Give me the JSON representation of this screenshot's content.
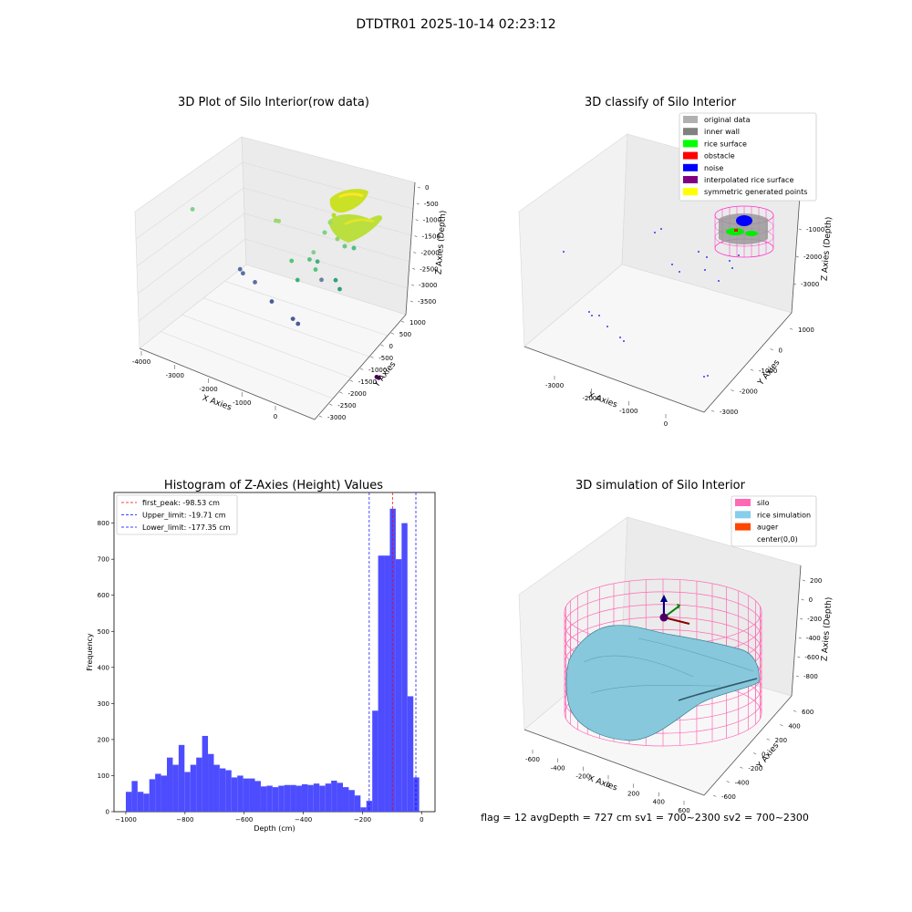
{
  "figure": {
    "suptitle": "DTDTR01 2025-10-14 02:23:12",
    "status_line": "flag = 12   avgDepth = 727 cm  sv1 = 700~2300  sv2 = 700~2300"
  },
  "chart_data": [
    {
      "type": "scatter",
      "title": "3D Plot of Silo Interior(row data)",
      "xlabel": "X Axies",
      "ylabel": "Y Axies",
      "zlabel": "Z Axies (Depth)",
      "x_ticks": [
        "-4000",
        "-3000",
        "-2000",
        "-1000",
        "0"
      ],
      "y_ticks": [
        "1000",
        "500",
        "0",
        "-500",
        "-1000",
        "-1500",
        "-2000",
        "-2500",
        "-3000"
      ],
      "z_ticks": [
        "0",
        "-500",
        "-1000",
        "-1500",
        "-2000",
        "-2500",
        "-3000",
        "-3500"
      ],
      "colormap": "viridis",
      "points": [
        {
          "x": -3400,
          "y": 600,
          "z": -2200,
          "c": "#7fd08a"
        },
        {
          "x": -2600,
          "y": -300,
          "z": -2800,
          "c": "#5a6fa3"
        },
        {
          "x": -2550,
          "y": -350,
          "z": -2850,
          "c": "#5a6fa3"
        },
        {
          "x": -2300,
          "y": -450,
          "z": -2900,
          "c": "#5a6fa3"
        },
        {
          "x": -2000,
          "y": -700,
          "z": -3100,
          "c": "#4b5c99"
        },
        {
          "x": -1600,
          "y": -950,
          "z": -3200,
          "c": "#4b5c99"
        },
        {
          "x": -1500,
          "y": -1000,
          "z": -3250,
          "c": "#4b5c99"
        },
        {
          "x": -1300,
          "y": 600,
          "z": -1500,
          "c": "#9bd96f"
        },
        {
          "x": -1250,
          "y": 550,
          "z": -1450,
          "c": "#9bd96f"
        },
        {
          "x": -1000,
          "y": 400,
          "z": -2300,
          "c": "#55c477"
        },
        {
          "x": -900,
          "y": 300,
          "z": -2700,
          "c": "#3fb07d"
        },
        {
          "x": -600,
          "y": 300,
          "z": -2000,
          "c": "#55c477"
        },
        {
          "x": -450,
          "y": 300,
          "z": -2200,
          "c": "#55c477"
        },
        {
          "x": -350,
          "y": 600,
          "z": -1900,
          "c": "#7fd08a"
        },
        {
          "x": -250,
          "y": 600,
          "z": -2100,
          "c": "#3fb07d"
        },
        {
          "x": -200,
          "y": 500,
          "z": -2500,
          "c": "#6f7fa0"
        },
        {
          "x": 0,
          "y": 200,
          "z": -2200,
          "c": "#2fa27a"
        },
        {
          "x": 0,
          "y": 0,
          "z": -2300,
          "c": "#2fa27a"
        },
        {
          "x": 0,
          "y": -1800,
          "z": -3400,
          "c": "#440154"
        },
        {
          "x": 50,
          "y": -1800,
          "z": -3400,
          "c": "#440154"
        }
      ],
      "cluster": {
        "label_color": "#c8e01a",
        "x": [
          -400,
          400
        ],
        "y": [
          -100,
          700
        ],
        "z": [
          -1800,
          -600
        ]
      }
    },
    {
      "type": "scatter",
      "title": "3D classify of Silo Interior",
      "xlabel": "X Axies",
      "ylabel": "Y Axies",
      "zlabel": "Z Axies (Depth)",
      "x_ticks": [
        "-3000",
        "-2000",
        "-1000",
        "0"
      ],
      "y_ticks": [
        "1000",
        "0",
        "-1000",
        "-2000",
        "-3000"
      ],
      "z_ticks": [
        "-1000",
        "-2000",
        "-3000"
      ],
      "legend": [
        {
          "label": "original data",
          "color": "#b0b0b0"
        },
        {
          "label": "inner wall",
          "color": "#808080"
        },
        {
          "label": "rice surface",
          "color": "#00ff00"
        },
        {
          "label": "obstacle",
          "color": "#ff0000"
        },
        {
          "label": "noise",
          "color": "#0000ff"
        },
        {
          "label": "interpolated rice surface",
          "color": "#800080"
        },
        {
          "label": "symmetric generated points",
          "color": "#ffff00"
        }
      ],
      "legend_loc": "upper right"
    },
    {
      "type": "bar",
      "title": "Histogram of Z-Axies (Height) Values",
      "xlabel": "Depth (cm)",
      "ylabel": "Frequency",
      "xlim": [
        -1040,
        45
      ],
      "ylim": [
        0,
        885
      ],
      "x_ticks": [
        -1000,
        -800,
        -600,
        -400,
        -200,
        0
      ],
      "y_ticks": [
        0,
        100,
        200,
        300,
        400,
        500,
        600,
        700,
        800
      ],
      "bin_start": -1000,
      "bin_width": 19.83,
      "bar_color": "#4d4dff",
      "values": [
        55,
        85,
        55,
        50,
        90,
        105,
        100,
        150,
        130,
        185,
        110,
        130,
        150,
        210,
        160,
        130,
        120,
        115,
        95,
        100,
        92,
        92,
        85,
        70,
        72,
        68,
        72,
        74,
        74,
        72,
        76,
        74,
        78,
        72,
        78,
        86,
        80,
        68,
        60,
        45,
        12,
        30,
        280,
        710,
        710,
        840,
        700,
        800,
        320,
        95
      ],
      "vlines": [
        {
          "x": -98.53,
          "color": "#ff0000",
          "label": "first_peak: -98.53 cm"
        },
        {
          "x": -19.71,
          "color": "#0000ff",
          "label": "Upper_limit: -19.71 cm"
        },
        {
          "x": -177.35,
          "color": "#0000ff",
          "label": "Lower_limit: -177.35 cm"
        }
      ],
      "legend_loc": "upper left"
    },
    {
      "type": "surface",
      "title": "3D simulation of Silo Interior",
      "xlabel": "X Axies",
      "ylabel": "Y Axies",
      "zlabel": "Z Axies (Depth)",
      "x_ticks": [
        "-600",
        "-400",
        "-200",
        "0",
        "200",
        "400",
        "600"
      ],
      "y_ticks": [
        "600",
        "400",
        "200",
        "0",
        "-200",
        "-400",
        "-600"
      ],
      "z_ticks": [
        "200",
        "0",
        "-200",
        "-400",
        "-600",
        "-800"
      ],
      "legend": [
        {
          "label": "silo",
          "color": "#ff69b4"
        },
        {
          "label": "rice simulation",
          "color": "#87ceeb"
        },
        {
          "label": "auger",
          "color": "#ff4500"
        },
        {
          "label": "center(0,0)",
          "color": ""
        }
      ],
      "legend_loc": "upper right"
    }
  ]
}
